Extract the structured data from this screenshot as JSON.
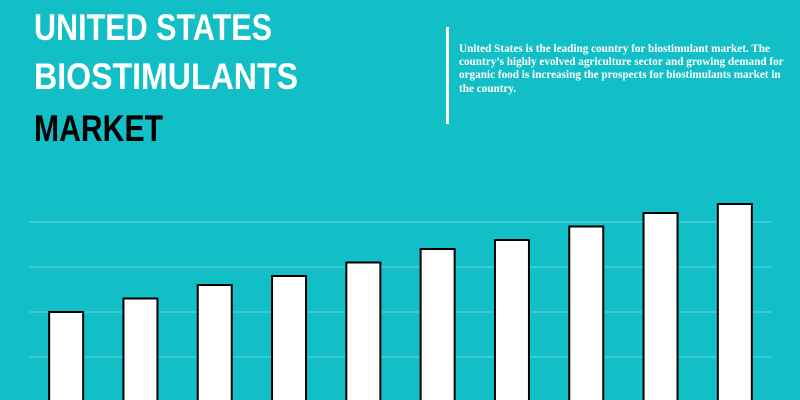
{
  "chart_data": {
    "type": "bar",
    "title_lines": [
      "UNITED STATES",
      "BIOSTIMULANTS",
      "MARKET"
    ],
    "title_colors": [
      "#ffffff",
      "#ffffff",
      "#000000"
    ],
    "description": "United States is the leading country for biostimulant market. The country’s highly evolved agriculture sector and growing demand for organic food is increasing the prospects for biostimulants market in the country.",
    "categories": [
      null,
      null,
      null,
      null,
      null,
      null,
      null,
      null,
      null,
      null
    ],
    "values": [
      2.0,
      2.3,
      2.6,
      2.8,
      3.1,
      3.4,
      3.6,
      3.9,
      4.2,
      4.4
    ],
    "color": "#ffffff",
    "ylim": [
      0,
      5
    ],
    "yticks": [
      1,
      2,
      3,
      4
    ],
    "grid": true
  }
}
